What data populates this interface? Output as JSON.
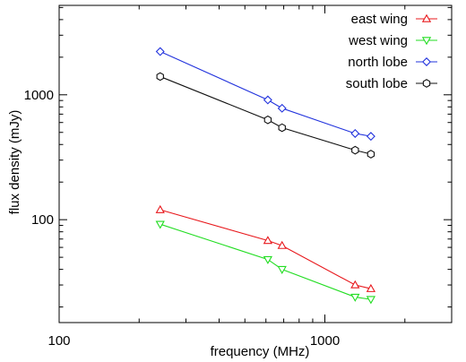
{
  "chart_data": {
    "type": "line",
    "xlabel": "frequency (MHz)",
    "ylabel": "flux density (mJy)",
    "xscale": "log",
    "yscale": "log",
    "xlim": [
      100,
      3000
    ],
    "ylim": [
      15,
      5200
    ],
    "xticks": [
      100,
      1000
    ],
    "xtick_labels": [
      "100",
      "1000"
    ],
    "yticks": [
      100,
      1000
    ],
    "ytick_labels": [
      "100",
      "1000"
    ],
    "grid": false,
    "legend_position": "top-right",
    "series": [
      {
        "name": "east wing",
        "color": "#e8181c",
        "marker": "triangle-up",
        "x": [
          240,
          610,
          690,
          1300,
          1490
        ],
        "y": [
          120,
          68,
          62,
          30,
          28
        ]
      },
      {
        "name": "west wing",
        "color": "#22dd22",
        "marker": "triangle-down",
        "x": [
          240,
          610,
          690,
          1300,
          1490
        ],
        "y": [
          92,
          48,
          40,
          24,
          23
        ]
      },
      {
        "name": "north lobe",
        "color": "#2233dd",
        "marker": "diamond",
        "x": [
          240,
          610,
          690,
          1300,
          1490
        ],
        "y": [
          2220,
          910,
          780,
          490,
          465
        ]
      },
      {
        "name": "south lobe",
        "color": "#111111",
        "marker": "hexagon",
        "x": [
          240,
          610,
          690,
          1300,
          1490
        ],
        "y": [
          1400,
          630,
          545,
          360,
          335
        ]
      }
    ]
  }
}
